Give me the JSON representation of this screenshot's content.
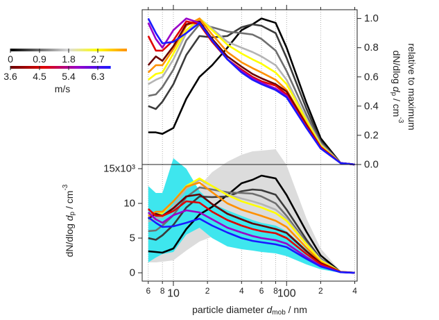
{
  "chart_data": [
    {
      "type": "line",
      "ylabel": [
        "dN/dlog ",
        "d",
        "p",
        " / cm",
        "-3"
      ],
      "ylabel_line2": "relative to maximum",
      "yaxis_side": "right",
      "xscale": "log",
      "grid": true,
      "xlim": [
        5.3,
        420
      ],
      "ylim": [
        0,
        1.06
      ],
      "xticks": [
        6,
        8,
        10,
        20,
        40,
        60,
        80,
        100,
        200,
        400
      ],
      "yticks": [
        {
          "value": 0,
          "label": "0.0"
        },
        0.2,
        0.4,
        0.6,
        0.8,
        {
          "value": 1,
          "label": "1.0"
        }
      ],
      "x": [
        6,
        7,
        8,
        10,
        13,
        17,
        22,
        30,
        40,
        50,
        60,
        80,
        100,
        150,
        200,
        300,
        400
      ],
      "series": [
        {
          "color": "#000000",
          "values": [
            0.22,
            0.22,
            0.21,
            0.25,
            0.45,
            0.6,
            0.68,
            0.8,
            0.92,
            0.96,
            1.0,
            0.97,
            0.8,
            0.42,
            0.18,
            0.01,
            0
          ]
        },
        {
          "color": "#3a3a3a",
          "values": [
            0.4,
            0.38,
            0.43,
            0.55,
            0.75,
            0.88,
            0.87,
            0.88,
            0.94,
            0.96,
            0.95,
            0.9,
            0.73,
            0.38,
            0.16,
            0.01,
            0
          ]
        },
        {
          "color": "#6e6e6e",
          "values": [
            0.47,
            0.48,
            0.53,
            0.65,
            0.85,
            0.96,
            0.94,
            0.91,
            0.9,
            0.89,
            0.86,
            0.78,
            0.64,
            0.34,
            0.15,
            0.01,
            0
          ]
        },
        {
          "color": "#b4b4b4",
          "values": [
            0.55,
            0.58,
            0.6,
            0.72,
            0.9,
            1.0,
            0.93,
            0.84,
            0.8,
            0.77,
            0.74,
            0.68,
            0.58,
            0.31,
            0.14,
            0.01,
            0
          ]
        },
        {
          "color": "#ffff00",
          "values": [
            0.58,
            0.62,
            0.63,
            0.76,
            0.92,
            1.0,
            0.92,
            0.82,
            0.76,
            0.72,
            0.69,
            0.63,
            0.55,
            0.3,
            0.13,
            0.01,
            0
          ]
        },
        {
          "color": "#ff9000",
          "values": [
            0.63,
            0.68,
            0.68,
            0.79,
            0.95,
            1.0,
            0.89,
            0.77,
            0.7,
            0.66,
            0.63,
            0.58,
            0.51,
            0.28,
            0.12,
            0.01,
            0
          ]
        },
        {
          "color": "#6a0000",
          "values": [
            0.68,
            0.74,
            0.71,
            0.81,
            0.96,
            0.98,
            0.86,
            0.74,
            0.67,
            0.62,
            0.59,
            0.55,
            0.5,
            0.27,
            0.12,
            0.01,
            0
          ]
        },
        {
          "color": "#e00000",
          "values": [
            0.88,
            0.78,
            0.78,
            0.85,
            0.98,
            0.96,
            0.84,
            0.72,
            0.65,
            0.6,
            0.57,
            0.54,
            0.48,
            0.26,
            0.12,
            0.01,
            0
          ]
        },
        {
          "color": "#9a00c8",
          "values": [
            0.97,
            0.86,
            0.8,
            0.92,
            1.0,
            0.97,
            0.85,
            0.72,
            0.64,
            0.59,
            0.56,
            0.52,
            0.47,
            0.25,
            0.11,
            0.01,
            0
          ]
        },
        {
          "color": "#1a1aff",
          "values": [
            1.0,
            0.9,
            0.83,
            0.84,
            0.9,
            0.97,
            0.85,
            0.72,
            0.63,
            0.58,
            0.55,
            0.51,
            0.46,
            0.25,
            0.11,
            0.01,
            0
          ]
        }
      ],
      "colorbar": {
        "lim": [
          0,
          6.7
        ],
        "ticks": [
          0,
          0.9,
          1.8,
          2.7,
          3.6,
          4.5,
          5.4,
          6.3
        ],
        "label": "m/s",
        "colors": [
          [
            "#000000",
            "#6e6e6e",
            "#dddddd",
            "#ffff00",
            "#ff9000"
          ],
          [
            "#6a0000",
            "#e00000",
            "#9a00c8",
            "#1a1aff"
          ]
        ]
      }
    },
    {
      "type": "line",
      "ylabel": [
        "dN/dlog ",
        "d",
        "p",
        " / cm",
        "-3"
      ],
      "xlabel": [
        "particle diameter ",
        "d",
        "mob",
        " / nm"
      ],
      "yaxis_side": "left",
      "xscale": "log",
      "grid": true,
      "xlim": [
        5.3,
        420
      ],
      "ylim": [
        -1200,
        15600
      ],
      "xticks": [
        6,
        8,
        10,
        {
          "value": 20,
          "label": "2"
        },
        {
          "value": 40,
          "label": "4"
        },
        {
          "value": 60,
          "label": "6"
        },
        {
          "value": 80,
          "label": "8"
        },
        100,
        {
          "value": 200,
          "label": "2"
        },
        {
          "value": 400,
          "label": "4"
        }
      ],
      "yticks": [
        0,
        {
          "value": 5000,
          "label": "5"
        },
        {
          "value": 10000,
          "label": "10"
        },
        {
          "value": 15000,
          "label": "15x10³"
        }
      ],
      "x": [
        6,
        7,
        8,
        10,
        13,
        17,
        22,
        30,
        40,
        50,
        60,
        80,
        100,
        150,
        200,
        300,
        400
      ],
      "bands": [
        {
          "color": "#dcdcdc",
          "lower": [
            1500,
            1500,
            1600,
            1800,
            3200,
            4500,
            5200,
            6400,
            7000,
            7000,
            7000,
            6500,
            5000,
            2000,
            600,
            0,
            0
          ],
          "upper": [
            5000,
            5000,
            5200,
            6000,
            9500,
            12500,
            14500,
            16000,
            17000,
            17500,
            17600,
            17800,
            15500,
            7800,
            3500,
            200,
            0
          ]
        },
        {
          "color": "#3ee6ee",
          "lower": [
            1500,
            2200,
            2700,
            3000,
            5500,
            6500,
            5000,
            3800,
            3400,
            3200,
            3000,
            2800,
            2400,
            1200,
            500,
            0,
            0
          ],
          "upper": [
            12500,
            11500,
            11500,
            16500,
            15000,
            11800,
            10000,
            9000,
            8200,
            7600,
            7200,
            6800,
            6000,
            3400,
            1600,
            150,
            0
          ]
        }
      ],
      "series": [
        {
          "color": "#000000",
          "values": [
            3100,
            3000,
            2900,
            3500,
            6300,
            8400,
            9500,
            11200,
            12900,
            13400,
            14000,
            13600,
            11200,
            5900,
            2500,
            100,
            0
          ]
        },
        {
          "color": "#3a3a3a",
          "values": [
            5000,
            4750,
            5400,
            6900,
            9400,
            11000,
            10900,
            11000,
            11750,
            12000,
            11900,
            11250,
            9100,
            4750,
            2000,
            130,
            0
          ]
        },
        {
          "color": "#6e6e6e",
          "values": [
            6000,
            6100,
            6800,
            8300,
            10900,
            12300,
            12000,
            11600,
            11500,
            11400,
            11000,
            10000,
            8200,
            4350,
            1900,
            130,
            0
          ]
        },
        {
          "color": "#b4b4b4",
          "values": [
            7400,
            7800,
            8000,
            9600,
            12100,
            13400,
            12500,
            11300,
            10700,
            10300,
            9900,
            9100,
            7800,
            4150,
            1900,
            130,
            0
          ]
        },
        {
          "color": "#ffff00",
          "values": [
            7900,
            8400,
            8600,
            10300,
            12500,
            13600,
            12500,
            11200,
            10300,
            9800,
            9400,
            8600,
            7500,
            4100,
            1750,
            140,
            0
          ]
        },
        {
          "color": "#ff9000",
          "values": [
            8200,
            8800,
            8800,
            10300,
            12400,
            13000,
            11600,
            10000,
            9100,
            8600,
            8200,
            7500,
            6600,
            3600,
            1550,
            130,
            0
          ]
        },
        {
          "color": "#6a0000",
          "values": [
            7800,
            8500,
            8200,
            9300,
            11000,
            11300,
            9900,
            8500,
            7700,
            7100,
            6800,
            6300,
            5750,
            3100,
            1400,
            115,
            0
          ]
        },
        {
          "color": "#e00000",
          "values": [
            9200,
            8200,
            8200,
            8900,
            10300,
            10100,
            8800,
            7600,
            6800,
            6300,
            6000,
            5700,
            5000,
            2700,
            1250,
            100,
            0
          ]
        },
        {
          "color": "#9a00c8",
          "values": [
            8700,
            7700,
            7200,
            8300,
            9000,
            8700,
            7700,
            6500,
            5800,
            5300,
            5000,
            4700,
            4200,
            2250,
            1000,
            90,
            0
          ]
        },
        {
          "color": "#1a1aff",
          "values": [
            8000,
            7200,
            6600,
            6700,
            7200,
            7800,
            6800,
            5800,
            5000,
            4600,
            4400,
            4100,
            3700,
            2000,
            900,
            80,
            0
          ]
        }
      ]
    }
  ]
}
